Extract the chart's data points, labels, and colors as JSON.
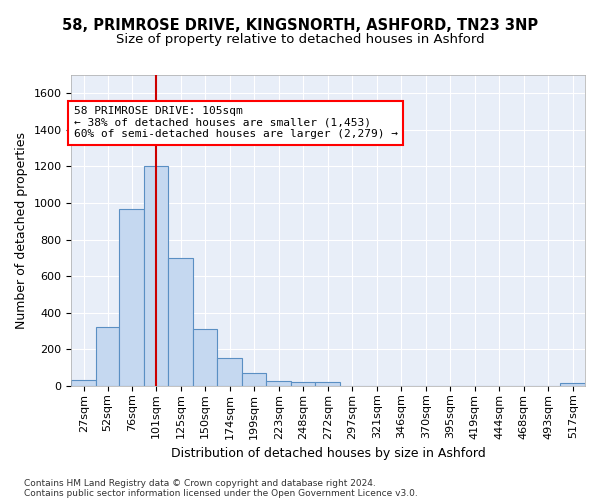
{
  "title_line1": "58, PRIMROSE DRIVE, KINGSNORTH, ASHFORD, TN23 3NP",
  "title_line2": "Size of property relative to detached houses in Ashford",
  "xlabel": "Distribution of detached houses by size in Ashford",
  "ylabel": "Number of detached properties",
  "footer_line1": "Contains HM Land Registry data © Crown copyright and database right 2024.",
  "footer_line2": "Contains public sector information licensed under the Open Government Licence v3.0.",
  "annotation_line1": "58 PRIMROSE DRIVE: 105sqm",
  "annotation_line2": "← 38% of detached houses are smaller (1,453)",
  "annotation_line3": "60% of semi-detached houses are larger (2,279) →",
  "bar_color": "#c5d8f0",
  "bar_edge_color": "#5a8fc3",
  "redline_color": "#cc0000",
  "categories": [
    "27sqm",
    "52sqm",
    "76sqm",
    "101sqm",
    "125sqm",
    "150sqm",
    "174sqm",
    "199sqm",
    "223sqm",
    "248sqm",
    "272sqm",
    "297sqm",
    "321sqm",
    "346sqm",
    "370sqm",
    "395sqm",
    "419sqm",
    "444sqm",
    "468sqm",
    "493sqm",
    "517sqm"
  ],
  "bin_edges": [
    14.5,
    39.5,
    63.5,
    88.5,
    113.5,
    138.5,
    163.5,
    188.5,
    213.5,
    238.5,
    263.5,
    288.5,
    313.5,
    338.5,
    363.5,
    388.5,
    413.5,
    438.5,
    463.5,
    488.5,
    513.5,
    538.5
  ],
  "bar_heights": [
    30,
    320,
    965,
    1200,
    700,
    310,
    150,
    70,
    25,
    20,
    20,
    0,
    0,
    0,
    0,
    0,
    0,
    0,
    0,
    0,
    15
  ],
  "redline_x": 101,
  "ylim": [
    0,
    1700
  ],
  "yticks": [
    0,
    200,
    400,
    600,
    800,
    1000,
    1200,
    1400,
    1600
  ],
  "background_color": "#ffffff",
  "plot_bg_color": "#e8eef8",
  "grid_color": "#ffffff",
  "title_fontsize": 10.5,
  "subtitle_fontsize": 9.5,
  "axis_label_fontsize": 9,
  "tick_fontsize": 8,
  "annotation_fontsize": 8,
  "footer_fontsize": 6.5
}
